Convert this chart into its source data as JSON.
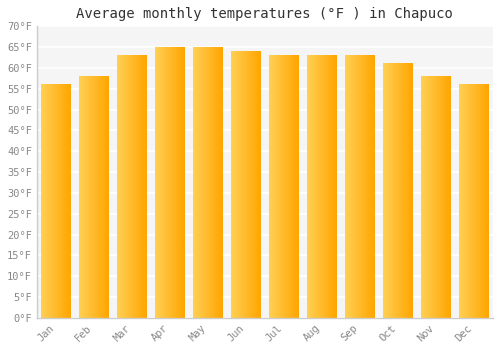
{
  "title": "Average monthly temperatures (°F ) in Chapuco",
  "months": [
    "Jan",
    "Feb",
    "Mar",
    "Apr",
    "May",
    "Jun",
    "Jul",
    "Aug",
    "Sep",
    "Oct",
    "Nov",
    "Dec"
  ],
  "values": [
    56,
    58,
    63,
    65,
    65,
    64,
    63,
    63,
    63,
    61,
    58,
    56
  ],
  "bar_color_light": "#FFD055",
  "bar_color_dark": "#FFA500",
  "ylim": [
    0,
    70
  ],
  "yticks": [
    0,
    5,
    10,
    15,
    20,
    25,
    30,
    35,
    40,
    45,
    50,
    55,
    60,
    65,
    70
  ],
  "background_color": "#ffffff",
  "plot_bg_color": "#f5f5f5",
  "grid_color": "#ffffff",
  "axis_color": "#cccccc",
  "tick_label_color": "#888888",
  "title_color": "#333333",
  "title_fontsize": 10,
  "tick_fontsize": 7.5,
  "bar_width": 0.78
}
